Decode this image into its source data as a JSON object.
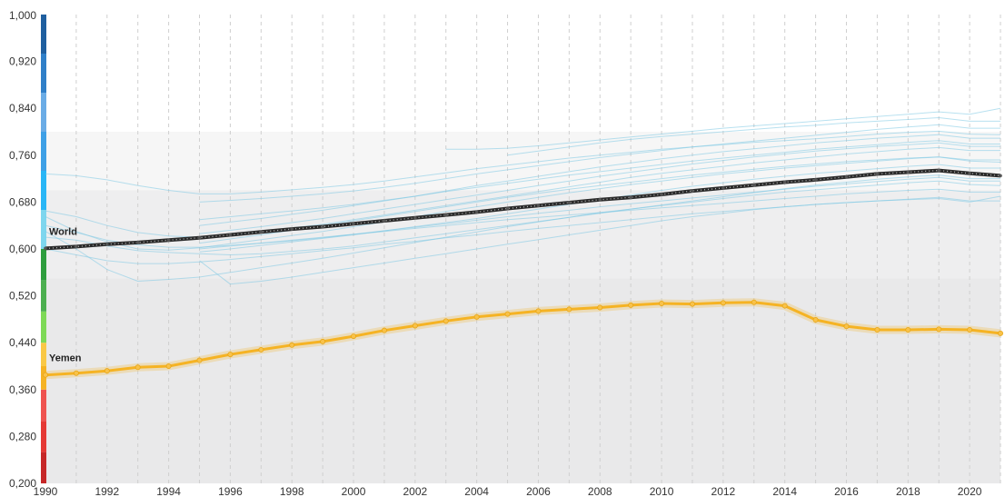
{
  "chart_data": {
    "type": "line",
    "title": "",
    "xlabel": "",
    "ylabel": "",
    "xlim": [
      1990,
      2021
    ],
    "ylim": [
      0.2,
      1.0
    ],
    "x": [
      1990,
      1991,
      1992,
      1993,
      1994,
      1995,
      1996,
      1997,
      1998,
      1999,
      2000,
      2001,
      2002,
      2003,
      2004,
      2005,
      2006,
      2007,
      2008,
      2009,
      2010,
      2011,
      2012,
      2013,
      2014,
      2015,
      2016,
      2017,
      2018,
      2019,
      2020,
      2021
    ],
    "x_tick_labels": [
      "1990",
      "1992",
      "1994",
      "1996",
      "1998",
      "2000",
      "2002",
      "2004",
      "2006",
      "2008",
      "2010",
      "2012",
      "2014",
      "2016",
      "2018",
      "2020"
    ],
    "y_ticks": [
      0.2,
      0.28,
      0.36,
      0.44,
      0.52,
      0.6,
      0.68,
      0.76,
      0.84,
      0.92,
      1.0
    ],
    "y_tick_labels": [
      "0,200",
      "0,280",
      "0,360",
      "0,440",
      "0,520",
      "0,600",
      "0,680",
      "0,760",
      "0,840",
      "0,920",
      "1,000"
    ],
    "grid": "vertical dashed",
    "colors": {
      "world": "#2b2b2b",
      "yemen": "#f5b324",
      "background_lines": "#7ec8e3"
    },
    "color_scale": [
      {
        "from": 0.2,
        "to": 0.36,
        "colors": [
          "#c62828",
          "#e53935",
          "#ef5350"
        ]
      },
      {
        "from": 0.36,
        "to": 0.44,
        "colors": [
          "#f5b324",
          "#f9c846"
        ]
      },
      {
        "from": 0.44,
        "to": 0.6,
        "colors": [
          "#7ed957",
          "#4caf50",
          "#2e9d3e"
        ]
      },
      {
        "from": 0.6,
        "to": 0.8,
        "colors": [
          "#7ed6ee",
          "#29b6f6",
          "#3ea0e6"
        ]
      },
      {
        "from": 0.8,
        "to": 1.0,
        "colors": [
          "#6aace6",
          "#2f7fc8",
          "#1f5f9f"
        ]
      }
    ],
    "series": [
      {
        "name": "World",
        "values": [
          0.601,
          0.604,
          0.608,
          0.611,
          0.615,
          0.619,
          0.624,
          0.629,
          0.634,
          0.638,
          0.643,
          0.648,
          0.653,
          0.658,
          0.663,
          0.669,
          0.674,
          0.679,
          0.684,
          0.688,
          0.693,
          0.699,
          0.704,
          0.709,
          0.714,
          0.718,
          0.723,
          0.728,
          0.731,
          0.734,
          0.729,
          0.725
        ]
      },
      {
        "name": "Yemen",
        "values": [
          0.385,
          0.388,
          0.392,
          0.398,
          0.4,
          0.41,
          0.42,
          0.428,
          0.436,
          0.442,
          0.451,
          0.461,
          0.469,
          0.477,
          0.484,
          0.489,
          0.494,
          0.497,
          0.5,
          0.504,
          0.507,
          0.506,
          0.508,
          0.509,
          0.503,
          0.479,
          0.468,
          0.462,
          0.462,
          0.463,
          0.462,
          0.456
        ]
      }
    ],
    "background_series": [
      [
        0.728,
        0.725,
        0.718,
        0.708,
        0.7,
        0.694,
        0.694,
        0.697,
        0.701,
        0.705,
        0.71,
        0.716,
        0.723,
        0.73,
        0.737,
        0.743,
        0.749,
        0.755,
        0.76,
        0.765,
        0.77,
        0.774,
        0.778,
        0.782,
        0.785,
        0.788,
        0.792,
        0.796,
        0.799,
        0.801,
        0.796,
        0.795
      ],
      [
        0.665,
        0.655,
        0.64,
        0.628,
        0.622,
        0.62,
        0.625,
        0.63,
        0.636,
        0.642,
        0.65,
        0.658,
        0.666,
        0.674,
        0.682,
        0.69,
        0.698,
        0.706,
        0.714,
        0.722,
        0.729,
        0.735,
        0.741,
        0.747,
        0.752,
        0.757,
        0.762,
        0.766,
        0.77,
        0.773,
        0.768,
        0.768
      ],
      [
        0.655,
        0.63,
        0.612,
        0.6,
        0.598,
        0.602,
        0.609,
        0.616,
        0.623,
        0.63,
        0.638,
        0.646,
        0.655,
        0.664,
        0.672,
        0.68,
        0.688,
        0.696,
        0.703,
        0.71,
        0.716,
        0.722,
        0.728,
        0.733,
        0.738,
        0.742,
        0.746,
        0.75,
        0.754,
        0.757,
        0.75,
        0.748
      ],
      [
        0.63,
        0.6,
        0.565,
        0.545,
        0.548,
        0.552,
        0.56,
        0.568,
        0.576,
        0.584,
        0.593,
        0.602,
        0.611,
        0.62,
        0.629,
        0.638,
        0.646,
        0.654,
        0.662,
        0.668,
        0.674,
        0.68,
        0.686,
        0.692,
        0.697,
        0.701,
        0.705,
        0.709,
        0.713,
        0.716,
        0.71,
        0.708
      ],
      [
        null,
        null,
        null,
        null,
        null,
        0.68,
        0.683,
        0.686,
        0.69,
        0.694,
        0.699,
        0.705,
        0.712,
        0.72,
        0.728,
        0.735,
        0.742,
        0.749,
        0.756,
        0.762,
        0.768,
        0.774,
        0.779,
        0.784,
        0.789,
        0.794,
        0.799,
        0.804,
        0.808,
        0.812,
        0.806,
        0.806
      ],
      [
        null,
        null,
        null,
        null,
        null,
        0.65,
        0.655,
        0.66,
        0.665,
        0.67,
        0.676,
        0.683,
        0.69,
        0.698,
        0.705,
        0.712,
        0.719,
        0.726,
        0.732,
        0.738,
        0.744,
        0.75,
        0.755,
        0.76,
        0.765,
        0.77,
        0.774,
        0.778,
        0.782,
        0.785,
        0.779,
        0.779
      ],
      [
        null,
        null,
        null,
        null,
        null,
        0.595,
        0.6,
        0.606,
        0.612,
        0.618,
        0.624,
        0.631,
        0.638,
        0.645,
        0.652,
        0.66,
        0.668,
        0.676,
        0.684,
        0.692,
        0.7,
        0.707,
        0.713,
        0.719,
        0.724,
        0.729,
        0.733,
        0.737,
        0.741,
        0.744,
        0.738,
        0.738
      ],
      [
        0.62,
        0.615,
        0.605,
        0.597,
        0.594,
        0.592,
        0.59,
        0.592,
        0.596,
        0.6,
        0.605,
        0.612,
        0.619,
        0.626,
        0.633,
        0.64,
        0.647,
        0.654,
        0.661,
        0.668,
        0.675,
        0.682,
        0.689,
        0.696,
        0.703,
        0.709,
        0.714,
        0.719,
        0.723,
        0.726,
        0.72,
        0.72
      ],
      [
        null,
        null,
        null,
        null,
        null,
        0.58,
        0.54,
        0.545,
        0.552,
        0.56,
        0.568,
        0.576,
        0.584,
        0.592,
        0.6,
        0.608,
        0.616,
        0.624,
        0.632,
        0.64,
        0.648,
        0.655,
        0.661,
        0.667,
        0.672,
        0.676,
        0.679,
        0.682,
        0.684,
        0.686,
        0.68,
        0.69
      ],
      [
        null,
        null,
        null,
        null,
        null,
        null,
        null,
        null,
        null,
        null,
        null,
        null,
        null,
        0.77,
        0.77,
        0.772,
        0.776,
        0.781,
        0.786,
        0.791,
        0.796,
        0.801,
        0.806,
        0.81,
        0.814,
        0.818,
        0.822,
        0.826,
        0.83,
        0.834,
        0.83,
        0.84
      ],
      [
        null,
        null,
        null,
        null,
        null,
        null,
        null,
        null,
        null,
        null,
        null,
        null,
        null,
        null,
        null,
        0.76,
        0.767,
        0.774,
        0.781,
        0.787,
        0.792,
        0.796,
        0.8,
        0.804,
        0.808,
        0.811,
        0.815,
        0.818,
        0.821,
        0.824,
        0.818,
        0.818
      ],
      [
        0.64,
        0.628,
        0.615,
        0.607,
        0.603,
        0.603,
        0.606,
        0.61,
        0.614,
        0.619,
        0.625,
        0.631,
        0.637,
        0.643,
        0.649,
        0.655,
        0.661,
        0.666,
        0.672,
        0.677,
        0.682,
        0.687,
        0.692,
        0.697,
        0.702,
        0.707,
        0.711,
        0.715,
        0.719,
        0.722,
        0.716,
        0.716
      ],
      [
        null,
        null,
        null,
        null,
        null,
        0.61,
        0.617,
        0.624,
        0.632,
        0.64,
        0.648,
        0.656,
        0.664,
        0.672,
        0.68,
        0.688,
        0.695,
        0.702,
        0.708,
        0.714,
        0.72,
        0.726,
        0.731,
        0.736,
        0.741,
        0.745,
        0.749,
        0.752,
        0.755,
        0.757,
        0.752,
        0.752
      ],
      [
        null,
        null,
        null,
        null,
        null,
        0.626,
        0.632,
        0.638,
        0.645,
        0.652,
        0.66,
        0.668,
        0.676,
        0.684,
        0.692,
        0.7,
        0.708,
        0.716,
        0.724,
        0.731,
        0.738,
        0.745,
        0.751,
        0.757,
        0.762,
        0.767,
        0.771,
        0.775,
        0.778,
        0.781,
        0.775,
        0.775
      ],
      [
        null,
        null,
        null,
        null,
        null,
        0.6,
        0.605,
        0.61,
        0.615,
        0.62,
        0.625,
        0.63,
        0.635,
        0.64,
        0.645,
        0.65,
        0.654,
        0.658,
        0.662,
        0.666,
        0.67,
        0.674,
        0.678,
        0.682,
        0.686,
        0.69,
        0.694,
        0.697,
        0.7,
        0.702,
        0.697,
        0.697
      ],
      [
        null,
        null,
        null,
        null,
        null,
        0.64,
        0.646,
        0.652,
        0.659,
        0.666,
        0.674,
        0.682,
        0.69,
        0.699,
        0.708,
        0.716,
        0.724,
        0.732,
        0.74,
        0.747,
        0.754,
        0.76,
        0.766,
        0.771,
        0.776,
        0.781,
        0.785,
        0.789,
        0.792,
        0.795,
        0.789,
        0.789
      ],
      [
        0.6,
        0.59,
        0.58,
        0.575,
        0.575,
        0.578,
        0.582,
        0.587,
        0.592,
        0.597,
        0.602,
        0.608,
        0.613,
        0.619,
        0.624,
        0.63,
        0.635,
        0.64,
        0.645,
        0.65,
        0.655,
        0.66,
        0.664,
        0.668,
        0.672,
        0.676,
        0.679,
        0.682,
        0.685,
        0.688,
        0.682,
        0.682
      ]
    ]
  }
}
